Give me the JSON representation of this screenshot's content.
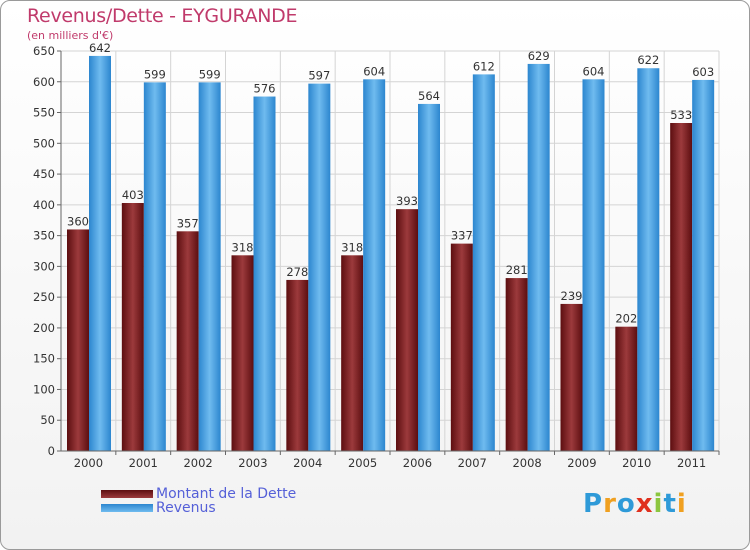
{
  "chart_data": {
    "type": "bar",
    "title": "Revenus/Dette - EYGURANDE",
    "subtitle": "(en milliers d'€)",
    "categories": [
      "2000",
      "2001",
      "2002",
      "2003",
      "2004",
      "2005",
      "2006",
      "2007",
      "2008",
      "2009",
      "2010",
      "2011"
    ],
    "series": [
      {
        "name": "Montant de la Dette",
        "values": [
          360,
          403,
          357,
          318,
          278,
          318,
          393,
          337,
          281,
          239,
          202,
          533
        ],
        "color": "#7a1a1c"
      },
      {
        "name": "Revenus",
        "values": [
          642,
          599,
          599,
          576,
          597,
          604,
          564,
          612,
          629,
          604,
          622,
          603
        ],
        "color": "#4aa3e6"
      }
    ],
    "ylim": [
      0,
      650
    ],
    "ytick_step": 50,
    "grid": true,
    "legend_position": "bottom-left",
    "data_labels": true
  },
  "branding": {
    "logo_letters": [
      "P",
      "r",
      "o",
      "x",
      "i",
      "t",
      "i"
    ],
    "logo_colors": [
      "#2e9ad8",
      "#f0a020",
      "#2e9ad8",
      "#e0301e",
      "#8cc63f",
      "#2e9ad8",
      "#f0a020"
    ]
  }
}
